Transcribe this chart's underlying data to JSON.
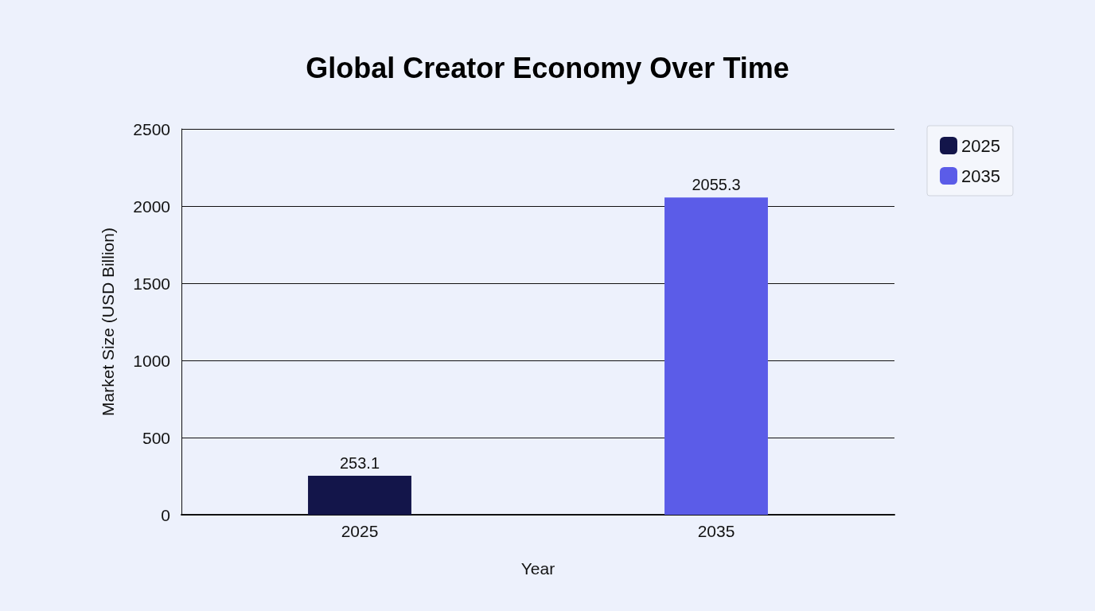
{
  "chart_data": {
    "type": "bar",
    "title": "Global Creator Economy Over Time",
    "xlabel": "Year",
    "ylabel": "Market Size (USD Billion)",
    "categories": [
      "2025",
      "2035"
    ],
    "series": [
      {
        "name": "2025",
        "color": "#13154a",
        "values": [
          253.1,
          null
        ]
      },
      {
        "name": "2035",
        "color": "#5b5ce8",
        "values": [
          null,
          2055.3
        ]
      }
    ],
    "ylim": [
      0,
      2500
    ],
    "yticks": [
      0,
      500,
      1000,
      1500,
      2000,
      2500
    ],
    "grid": "y",
    "legend": "top right",
    "data_labels": true
  }
}
